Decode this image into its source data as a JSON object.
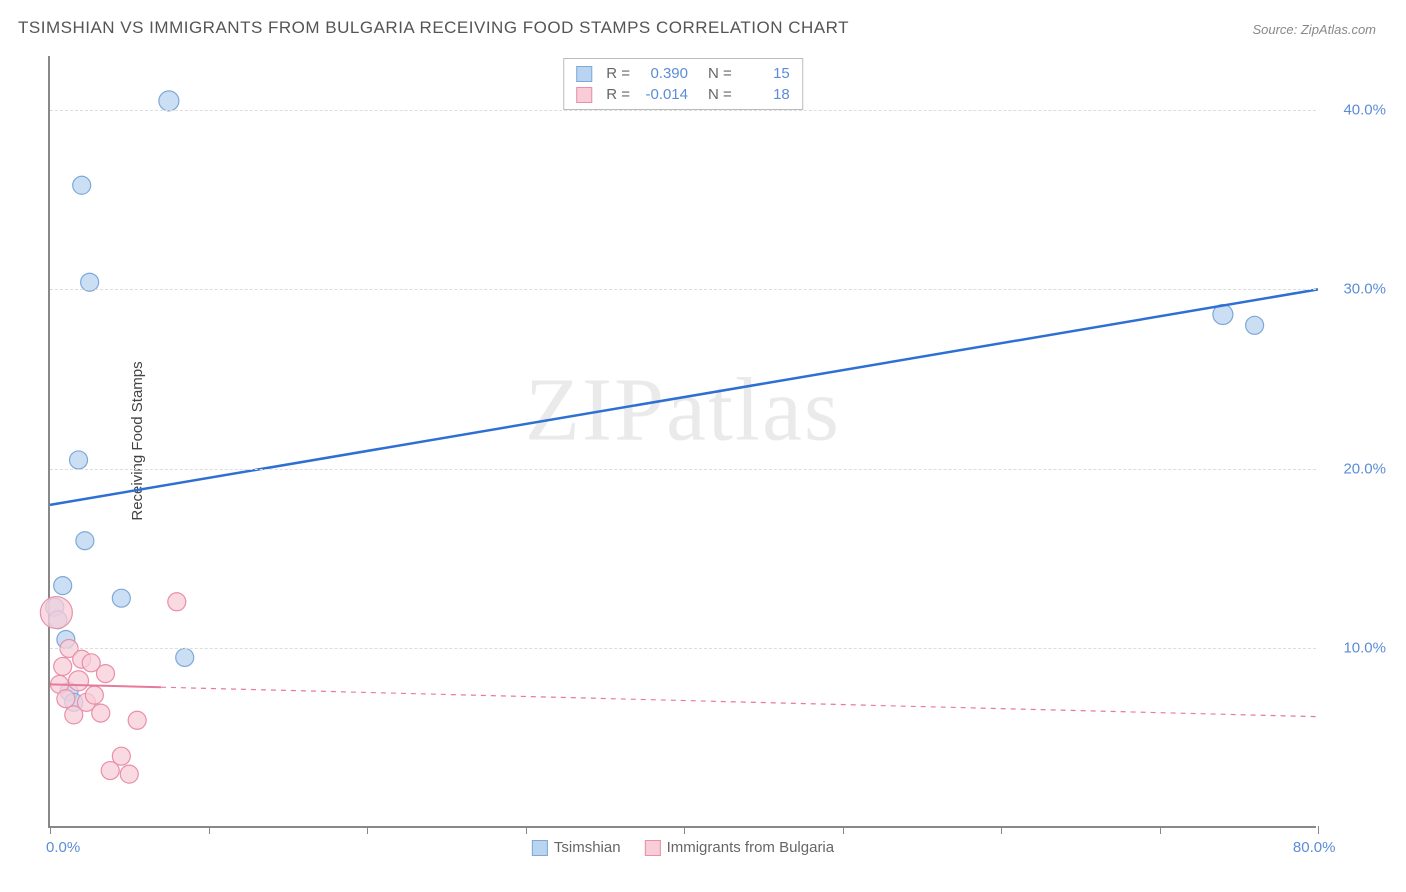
{
  "title": "TSIMSHIAN VS IMMIGRANTS FROM BULGARIA RECEIVING FOOD STAMPS CORRELATION CHART",
  "source": "Source: ZipAtlas.com",
  "ylabel": "Receiving Food Stamps",
  "watermark": "ZIPatlas",
  "chart": {
    "type": "scatter",
    "background_color": "#ffffff",
    "grid_color": "#dddddd",
    "axis_color": "#888888",
    "xlim": [
      0,
      80
    ],
    "ylim": [
      0,
      43
    ],
    "xticks": [
      0,
      10,
      20,
      30,
      40,
      50,
      60,
      70,
      80
    ],
    "xtick_labels_shown": {
      "0": "0.0%",
      "80": "80.0%"
    },
    "yticks": [
      10,
      20,
      30,
      40
    ],
    "ytick_labels": [
      "10.0%",
      "20.0%",
      "30.0%",
      "40.0%"
    ],
    "series": [
      {
        "name": "Tsimshian",
        "color_fill": "#b9d4f0",
        "color_stroke": "#7fa8d8",
        "marker_r": 9,
        "line_color": "#2e6fd4",
        "line_width": 2.5,
        "line_dash": "none",
        "R": "0.390",
        "N": "15",
        "trend": {
          "x1": 0,
          "y1": 18.0,
          "x2": 80,
          "y2": 30.0
        },
        "points": [
          {
            "x": 0.3,
            "y": 12.3,
            "r": 9
          },
          {
            "x": 0.5,
            "y": 11.6,
            "r": 9
          },
          {
            "x": 0.8,
            "y": 13.5,
            "r": 9
          },
          {
            "x": 1.0,
            "y": 10.5,
            "r": 9
          },
          {
            "x": 1.2,
            "y": 7.6,
            "r": 9
          },
          {
            "x": 1.5,
            "y": 7.0,
            "r": 9
          },
          {
            "x": 1.8,
            "y": 20.5,
            "r": 9
          },
          {
            "x": 2.0,
            "y": 35.8,
            "r": 9
          },
          {
            "x": 2.2,
            "y": 16.0,
            "r": 9
          },
          {
            "x": 2.5,
            "y": 30.4,
            "r": 9
          },
          {
            "x": 4.5,
            "y": 12.8,
            "r": 9
          },
          {
            "x": 7.5,
            "y": 40.5,
            "r": 10
          },
          {
            "x": 8.5,
            "y": 9.5,
            "r": 9
          },
          {
            "x": 74.0,
            "y": 28.6,
            "r": 10
          },
          {
            "x": 76.0,
            "y": 28.0,
            "r": 9
          }
        ]
      },
      {
        "name": "Immigrants from Bulgaria",
        "color_fill": "#f8cdd8",
        "color_stroke": "#e98fa8",
        "marker_r": 9,
        "line_color": "#e77a9a",
        "line_width": 2,
        "line_dash": "5,5",
        "solid_segment": {
          "x1": 0,
          "x2": 7
        },
        "R": "-0.014",
        "N": "18",
        "trend": {
          "x1": 0,
          "y1": 8.0,
          "x2": 80,
          "y2": 6.2
        },
        "points": [
          {
            "x": 0.4,
            "y": 12.0,
            "r": 16
          },
          {
            "x": 0.6,
            "y": 8.0,
            "r": 9
          },
          {
            "x": 0.8,
            "y": 9.0,
            "r": 9
          },
          {
            "x": 1.0,
            "y": 7.2,
            "r": 9
          },
          {
            "x": 1.2,
            "y": 10.0,
            "r": 9
          },
          {
            "x": 1.5,
            "y": 6.3,
            "r": 9
          },
          {
            "x": 1.8,
            "y": 8.2,
            "r": 10
          },
          {
            "x": 2.0,
            "y": 9.4,
            "r": 9
          },
          {
            "x": 2.3,
            "y": 7.0,
            "r": 9
          },
          {
            "x": 2.6,
            "y": 9.2,
            "r": 9
          },
          {
            "x": 2.8,
            "y": 7.4,
            "r": 9
          },
          {
            "x": 3.2,
            "y": 6.4,
            "r": 9
          },
          {
            "x": 3.5,
            "y": 8.6,
            "r": 9
          },
          {
            "x": 3.8,
            "y": 3.2,
            "r": 9
          },
          {
            "x": 4.5,
            "y": 4.0,
            "r": 9
          },
          {
            "x": 5.0,
            "y": 3.0,
            "r": 9
          },
          {
            "x": 5.5,
            "y": 6.0,
            "r": 9
          },
          {
            "x": 8.0,
            "y": 12.6,
            "r": 9
          }
        ]
      }
    ]
  },
  "legend_bottom": [
    {
      "label": "Tsimshian",
      "fill": "#b9d4f0",
      "stroke": "#7fa8d8"
    },
    {
      "label": "Immigrants from Bulgaria",
      "fill": "#f8cdd8",
      "stroke": "#e98fa8"
    }
  ]
}
